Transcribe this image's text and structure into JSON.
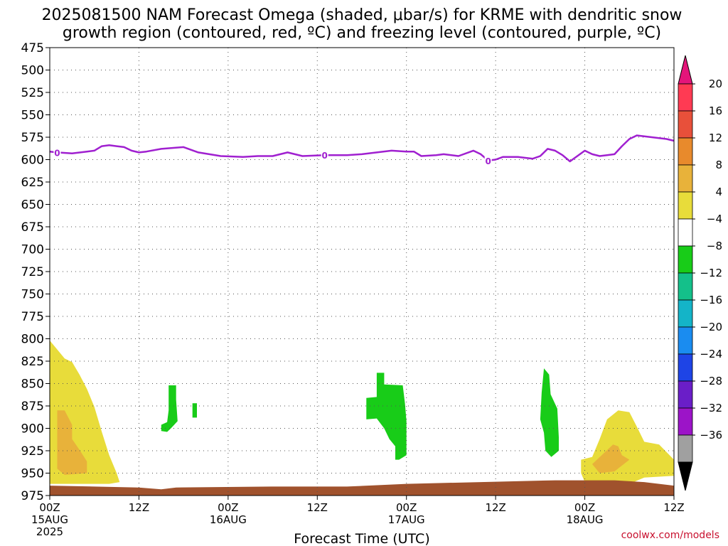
{
  "chart_data": {
    "type": "heatmap",
    "title_lines": [
      "2025081500 NAM Forecast Omega (shaded, μbar/s) for KRME with dendritic snow",
      "growth region (contoured, red, ºC) and freezing level (contoured, purple, ºC)"
    ],
    "xlabel": "Forecast Time (UTC)",
    "ylabel": "",
    "credit": "coolwx.com/models",
    "x_range_hours": [
      0,
      84
    ],
    "y_range_hpa": [
      475,
      975
    ],
    "y_scale": "linear (pressure, inverted)",
    "grid": "dotted",
    "y_ticks": [
      475,
      500,
      525,
      550,
      575,
      600,
      625,
      650,
      675,
      700,
      725,
      750,
      775,
      800,
      825,
      850,
      875,
      900,
      925,
      950,
      975
    ],
    "x_ticks": [
      {
        "hour": 0,
        "label": "00Z",
        "date": "15AUG",
        "year": "2025"
      },
      {
        "hour": 12,
        "label": "12Z",
        "date": "",
        "year": ""
      },
      {
        "hour": 24,
        "label": "00Z",
        "date": "16AUG",
        "year": ""
      },
      {
        "hour": 36,
        "label": "12Z",
        "date": "",
        "year": ""
      },
      {
        "hour": 48,
        "label": "00Z",
        "date": "17AUG",
        "year": ""
      },
      {
        "hour": 60,
        "label": "12Z",
        "date": "",
        "year": ""
      },
      {
        "hour": 72,
        "label": "00Z",
        "date": "18AUG",
        "year": ""
      },
      {
        "hour": 84,
        "label": "12Z",
        "date": "",
        "year": ""
      }
    ],
    "colorbar": {
      "labels": [
        "20",
        "16",
        "12",
        "8",
        "4",
        "−4",
        "−8",
        "−12",
        "−16",
        "−20",
        "−24",
        "−28",
        "−32",
        "−36"
      ],
      "colors": [
        "#ff3a53",
        "#e8503a",
        "#e88a2c",
        "#e8b23a",
        "#e8dc3a",
        "#ffffff",
        "#18cc18",
        "#14c08a",
        "#14b4c8",
        "#1a8cf0",
        "#1e44e6",
        "#6a1ec8",
        "#9c14c8",
        "#a0a0a0"
      ],
      "top_arrow_color": "#e4157a",
      "bottom_arrow_color": "#000000"
    },
    "freezing_level": {
      "label": "0",
      "color": "#a020d0",
      "label_hours": [
        1,
        37,
        59
      ],
      "points": [
        [
          0,
          591
        ],
        [
          1,
          592
        ],
        [
          3,
          593
        ],
        [
          5,
          591
        ],
        [
          6,
          590
        ],
        [
          7,
          585
        ],
        [
          8,
          584
        ],
        [
          9,
          585
        ],
        [
          10,
          586
        ],
        [
          11,
          590
        ],
        [
          12,
          592
        ],
        [
          13,
          591
        ],
        [
          15,
          588
        ],
        [
          18,
          586
        ],
        [
          20,
          592
        ],
        [
          23,
          596
        ],
        [
          26,
          597
        ],
        [
          28,
          596
        ],
        [
          30,
          596
        ],
        [
          32,
          592
        ],
        [
          34,
          596
        ],
        [
          37,
          595
        ],
        [
          40,
          595
        ],
        [
          42,
          594
        ],
        [
          44,
          592
        ],
        [
          46,
          590
        ],
        [
          48,
          591
        ],
        [
          49,
          591
        ],
        [
          50,
          596
        ],
        [
          52,
          595
        ],
        [
          53,
          594
        ],
        [
          55,
          596
        ],
        [
          57,
          590
        ],
        [
          58,
          594
        ],
        [
          59,
          601
        ],
        [
          60,
          600
        ],
        [
          61,
          597
        ],
        [
          63,
          597
        ],
        [
          65,
          599
        ],
        [
          66,
          596
        ],
        [
          67,
          588
        ],
        [
          68,
          590
        ],
        [
          69,
          595
        ],
        [
          70,
          602
        ],
        [
          71,
          596
        ],
        [
          72,
          590
        ],
        [
          73,
          594
        ],
        [
          74,
          596
        ],
        [
          75,
          595
        ],
        [
          76,
          594
        ],
        [
          77,
          585
        ],
        [
          78,
          577
        ],
        [
          79,
          573
        ],
        [
          80,
          574
        ],
        [
          82,
          576
        ],
        [
          83,
          577
        ],
        [
          84,
          579
        ]
      ]
    },
    "omega_regions": [
      {
        "value_range": "4 to 8",
        "color": "#e8dc3a",
        "points": [
          [
            0,
            802
          ],
          [
            1,
            812
          ],
          [
            2,
            822
          ],
          [
            3,
            826
          ],
          [
            4,
            840
          ],
          [
            5,
            856
          ],
          [
            6,
            876
          ],
          [
            7,
            904
          ],
          [
            8,
            930
          ],
          [
            9,
            950
          ],
          [
            9.4,
            960
          ],
          [
            8,
            962
          ],
          [
            6,
            962
          ],
          [
            3,
            962
          ],
          [
            0,
            962
          ]
        ]
      },
      {
        "value_range": "8 to 12",
        "color": "#e8b23a",
        "points": [
          [
            1,
            880
          ],
          [
            2,
            880
          ],
          [
            3,
            896
          ],
          [
            3,
            912
          ],
          [
            4,
            924
          ],
          [
            5,
            937
          ],
          [
            5,
            950
          ],
          [
            2,
            952
          ],
          [
            1,
            945
          ],
          [
            1,
            912
          ]
        ]
      },
      {
        "value_range": "-4 to -8",
        "color": "#18cc18",
        "points": [
          [
            16,
            852
          ],
          [
            17,
            852
          ],
          [
            17,
            868
          ],
          [
            17.2,
            892
          ],
          [
            16.3,
            900
          ],
          [
            15.8,
            904
          ],
          [
            15,
            903
          ],
          [
            15,
            896
          ],
          [
            15.8,
            893
          ],
          [
            16,
            880
          ]
        ]
      },
      {
        "value_range": "-4 to -8",
        "color": "#18cc18",
        "points": [
          [
            19.2,
            872
          ],
          [
            19.8,
            872
          ],
          [
            19.8,
            888
          ],
          [
            19.2,
            888
          ]
        ]
      },
      {
        "value_range": "-4 to -8",
        "color": "#18cc18",
        "points": [
          [
            44,
            838
          ],
          [
            45,
            838
          ],
          [
            45,
            851
          ],
          [
            47.5,
            852
          ],
          [
            47.8,
            872
          ],
          [
            48,
            892
          ],
          [
            48,
            930
          ],
          [
            47,
            935
          ],
          [
            46.5,
            935
          ],
          [
            46.5,
            920
          ],
          [
            45.7,
            912
          ],
          [
            45,
            900
          ],
          [
            44,
            889
          ],
          [
            42.6,
            890
          ],
          [
            42.6,
            866
          ],
          [
            44,
            865
          ]
        ]
      },
      {
        "value_range": "-4 to -8",
        "color": "#18cc18",
        "points": [
          [
            66.5,
            833
          ],
          [
            67.2,
            840
          ],
          [
            67.4,
            862
          ],
          [
            68.3,
            878
          ],
          [
            68.5,
            910
          ],
          [
            68.5,
            925
          ],
          [
            67.5,
            932
          ],
          [
            66.7,
            925
          ],
          [
            66.5,
            905
          ],
          [
            66,
            890
          ],
          [
            66.2,
            860
          ]
        ]
      },
      {
        "value_range": "4 to 8",
        "color": "#e8dc3a",
        "points": [
          [
            75,
            890
          ],
          [
            76.5,
            880
          ],
          [
            78,
            882
          ],
          [
            79,
            898
          ],
          [
            80,
            915
          ],
          [
            82,
            918
          ],
          [
            84,
            935
          ],
          [
            84,
            953
          ],
          [
            80,
            955
          ],
          [
            78,
            962
          ],
          [
            76,
            963
          ],
          [
            72,
            960
          ],
          [
            71.5,
            950
          ],
          [
            71.5,
            935
          ],
          [
            73,
            932
          ],
          [
            74,
            912
          ]
        ]
      },
      {
        "value_range": "8 to 12",
        "color": "#e8b23a",
        "points": [
          [
            75.8,
            918
          ],
          [
            76.5,
            920
          ],
          [
            77,
            930
          ],
          [
            78,
            935
          ],
          [
            76,
            948
          ],
          [
            74,
            950
          ],
          [
            73,
            940
          ]
        ]
      }
    ],
    "terrain": {
      "color": "#a0522d",
      "surface": [
        [
          0,
          964
        ],
        [
          12,
          966
        ],
        [
          15,
          968
        ],
        [
          17,
          966
        ],
        [
          30,
          965
        ],
        [
          40,
          965
        ],
        [
          48,
          962
        ],
        [
          58,
          960
        ],
        [
          68,
          958
        ],
        [
          76,
          958
        ],
        [
          80,
          960
        ],
        [
          84,
          964
        ]
      ]
    }
  }
}
